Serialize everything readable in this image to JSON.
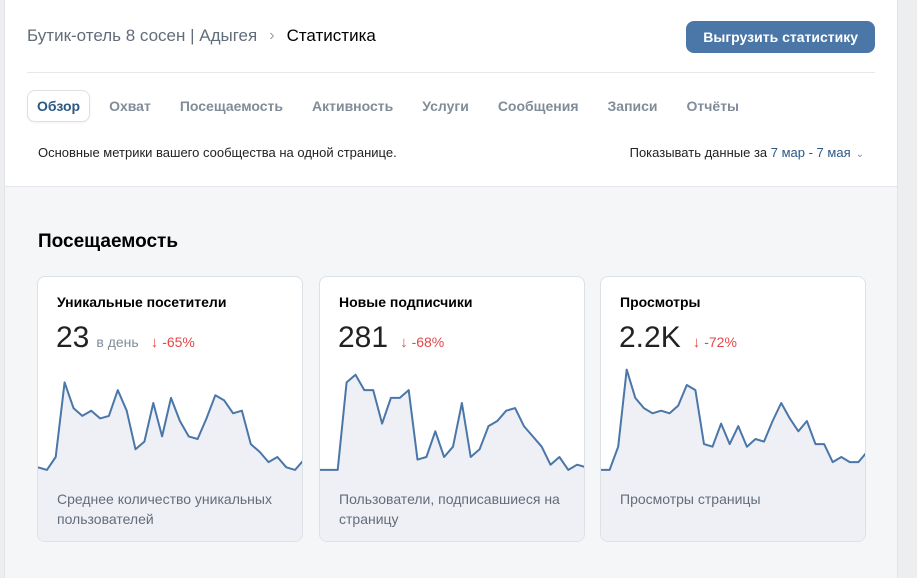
{
  "breadcrumb": {
    "community": "Бутик-отель 8 сосен | Адыгея",
    "separator": "›",
    "current": "Статистика"
  },
  "export_button": "Выгрузить статистику",
  "tabs": [
    {
      "label": "Обзор",
      "active": true
    },
    {
      "label": "Охват",
      "active": false
    },
    {
      "label": "Посещаемость",
      "active": false
    },
    {
      "label": "Активность",
      "active": false
    },
    {
      "label": "Услуги",
      "active": false
    },
    {
      "label": "Сообщения",
      "active": false
    },
    {
      "label": "Записи",
      "active": false
    },
    {
      "label": "Отчёты",
      "active": false
    }
  ],
  "info": {
    "description": "Основные метрики вашего сообщества на одной странице.",
    "period_prefix": "Показывать данные за",
    "period_value": "7 мар - 7 мая",
    "chevron": "⌄"
  },
  "section_title": "Посещаемость",
  "colors": {
    "accent": "#4a76a8",
    "line": "#4a76a8",
    "area": "#eef0f5",
    "negative": "#e64646"
  },
  "cards": [
    {
      "title": "Уникальные посетители",
      "value": "23",
      "unit": "в день",
      "delta_arrow": "↓",
      "delta": "-65%",
      "description": "Среднее количество уникальных пользователей"
    },
    {
      "title": "Новые подписчики",
      "value": "281",
      "unit": "",
      "delta_arrow": "↓",
      "delta": "-68%",
      "description": "Пользователи, подписавшиеся на страницу"
    },
    {
      "title": "Просмотры",
      "value": "2.2K",
      "unit": "",
      "delta_arrow": "↓",
      "delta": "-72%",
      "description": "Просмотры страницы"
    }
  ],
  "chart_data": [
    {
      "type": "area",
      "series": [
        {
          "values": [
            3,
            2,
            7,
            36,
            26,
            23,
            25,
            22,
            23,
            33,
            25,
            10,
            13,
            28,
            15,
            30,
            21,
            15,
            14,
            22,
            31,
            29,
            24,
            25,
            12,
            9,
            5,
            7,
            3,
            2,
            6
          ]
        }
      ]
    },
    {
      "type": "area",
      "series": [
        {
          "values": [
            2,
            2,
            2,
            36,
            39,
            33,
            33,
            20,
            30,
            30,
            33,
            6,
            7,
            17,
            7,
            11,
            28,
            7,
            10,
            19,
            21,
            25,
            26,
            19,
            15,
            11,
            4,
            7,
            2,
            4,
            3
          ]
        }
      ]
    },
    {
      "type": "area",
      "series": [
        {
          "values": [
            2,
            2,
            11,
            41,
            30,
            26,
            24,
            25,
            24,
            27,
            35,
            33,
            12,
            11,
            20,
            12,
            19,
            11,
            14,
            13,
            21,
            28,
            22,
            17,
            21,
            12,
            12,
            5,
            7,
            5,
            5,
            9
          ]
        }
      ]
    }
  ]
}
